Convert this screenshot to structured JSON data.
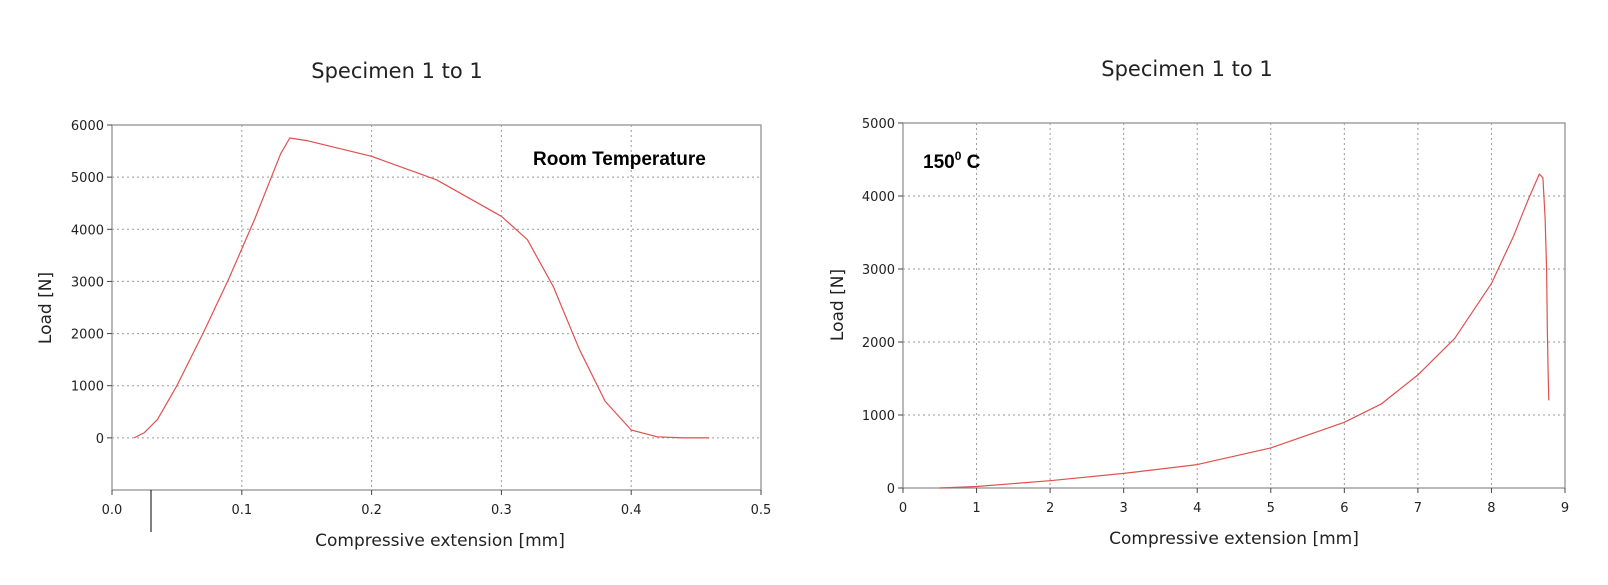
{
  "colors": {
    "series": "#e0504f",
    "frame": "#8a8a8a",
    "grid": "#9a9a9a",
    "text": "#222222"
  },
  "chart_data": [
    {
      "type": "line",
      "title": "Specimen 1 to 1",
      "xlabel": "Compressive extension [mm]",
      "ylabel": "Load [N]",
      "annotation": "Room Temperature",
      "xlim": [
        0,
        0.5
      ],
      "ylim": [
        -1000,
        6000
      ],
      "xticks": [
        0,
        0.1,
        0.2,
        0.3,
        0.4,
        0.5
      ],
      "xtick_labels": [
        "0.0",
        "0.1",
        "0.2",
        "0.3",
        "0.4",
        "0.5"
      ],
      "yticks": [
        0,
        1000,
        2000,
        3000,
        4000,
        5000,
        6000
      ],
      "ytick_labels": [
        "0",
        "1000",
        "2000",
        "3000",
        "4000",
        "5000",
        "6000"
      ],
      "grid": true,
      "series": [
        {
          "x": [
            0.017,
            0.025,
            0.035,
            0.05,
            0.07,
            0.09,
            0.11,
            0.13,
            0.137,
            0.15,
            0.2,
            0.25,
            0.3,
            0.32,
            0.34,
            0.36,
            0.38,
            0.4,
            0.42,
            0.44,
            0.46
          ],
          "y": [
            0,
            100,
            350,
            1000,
            2000,
            3050,
            4200,
            5450,
            5750,
            5700,
            5400,
            4950,
            4250,
            3800,
            2900,
            1700,
            700,
            150,
            20,
            0,
            0
          ]
        }
      ]
    },
    {
      "type": "line",
      "title": "Specimen 1 to 1",
      "xlabel": "Compressive extension [mm]",
      "ylabel": "Load [N]",
      "annotation": "150",
      "annotation_sup": "0",
      "annotation_suffix": " C",
      "xlim": [
        0,
        9
      ],
      "ylim": [
        0,
        5000
      ],
      "xticks": [
        0,
        1,
        2,
        3,
        4,
        5,
        6,
        7,
        8,
        9
      ],
      "xtick_labels": [
        "0",
        "1",
        "2",
        "3",
        "4",
        "5",
        "6",
        "7",
        "8",
        "9"
      ],
      "yticks": [
        0,
        1000,
        2000,
        3000,
        4000,
        5000
      ],
      "ytick_labels": [
        "0",
        "1000",
        "2000",
        "3000",
        "4000",
        "5000"
      ],
      "grid": true,
      "series": [
        {
          "x": [
            0.5,
            1,
            2,
            3,
            4,
            5,
            6,
            6.5,
            7,
            7.5,
            8,
            8.3,
            8.5,
            8.65,
            8.7,
            8.73,
            8.75,
            8.76,
            8.77,
            8.78
          ],
          "y": [
            0,
            20,
            100,
            200,
            320,
            550,
            900,
            1150,
            1550,
            2050,
            2800,
            3450,
            3950,
            4300,
            4250,
            3700,
            3000,
            2200,
            1600,
            1200
          ]
        }
      ]
    }
  ]
}
